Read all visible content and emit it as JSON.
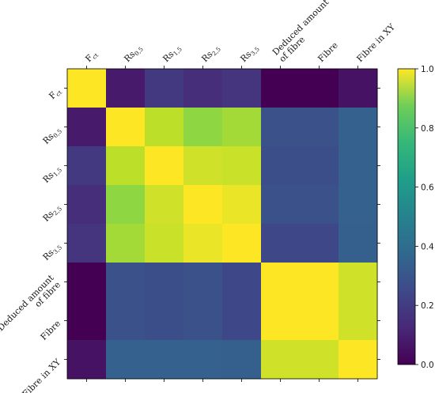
{
  "chart_data": {
    "type": "heatmap",
    "title": "",
    "colormap": "viridis",
    "row_labels": [
      {
        "base": "F",
        "sub": "ct"
      },
      {
        "base": "Rs",
        "sub": "0,5"
      },
      {
        "base": "Rs",
        "sub": "1,5"
      },
      {
        "base": "Rs",
        "sub": "2,5"
      },
      {
        "base": "Rs",
        "sub": "3,5"
      },
      {
        "lines": [
          "Deduced amount",
          "of fibre"
        ]
      },
      {
        "text": "Fibre"
      },
      {
        "text": "Fibre in XY"
      }
    ],
    "col_labels": [
      {
        "base": "F",
        "sub": "ct"
      },
      {
        "base": "Rs",
        "sub": "0,5"
      },
      {
        "base": "Rs",
        "sub": "1,5"
      },
      {
        "base": "Rs",
        "sub": "2,5"
      },
      {
        "base": "Rs",
        "sub": "3,5"
      },
      {
        "lines": [
          "Deduced amount",
          "of fibre"
        ]
      },
      {
        "text": "Fibre"
      },
      {
        "text": "Fibre in XY"
      }
    ],
    "values": [
      [
        1.0,
        0.07,
        0.17,
        0.13,
        0.15,
        0.0,
        0.0,
        0.05
      ],
      [
        0.07,
        1.0,
        0.9,
        0.83,
        0.86,
        0.25,
        0.25,
        0.31
      ],
      [
        0.17,
        0.9,
        1.0,
        0.93,
        0.92,
        0.24,
        0.24,
        0.31
      ],
      [
        0.13,
        0.83,
        0.93,
        1.0,
        0.97,
        0.25,
        0.25,
        0.31
      ],
      [
        0.15,
        0.86,
        0.92,
        0.97,
        1.0,
        0.22,
        0.22,
        0.3
      ],
      [
        0.0,
        0.25,
        0.24,
        0.25,
        0.22,
        1.0,
        1.0,
        0.93
      ],
      [
        0.0,
        0.25,
        0.24,
        0.25,
        0.22,
        1.0,
        1.0,
        0.93
      ],
      [
        0.05,
        0.31,
        0.31,
        0.31,
        0.3,
        0.93,
        0.93,
        1.0
      ]
    ],
    "colorbar": {
      "range": [
        0.0,
        1.0
      ],
      "ticks": [
        "0.0",
        "0.2",
        "0.4",
        "0.6",
        "0.8",
        "1.0"
      ]
    },
    "grid": false,
    "legend": "colorbar-right"
  }
}
